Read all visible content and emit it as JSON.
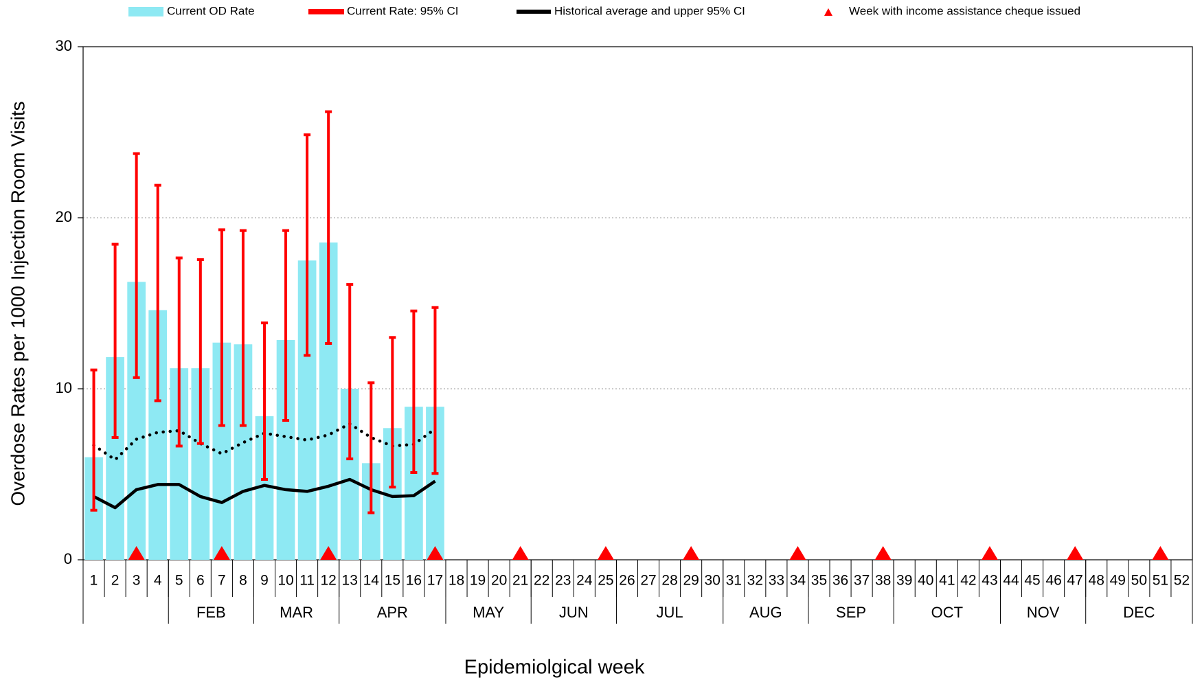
{
  "chart_data": {
    "type": "bar",
    "xlabel": "Epidemiolgical week",
    "ylabel": "Overdose Rates per 1000 Injection Room Visits",
    "categories": [
      "1",
      "2",
      "3",
      "4",
      "5",
      "6",
      "7",
      "8",
      "9",
      "10",
      "11",
      "12",
      "13",
      "14",
      "15",
      "16",
      "17",
      "18",
      "19",
      "20",
      "21",
      "22",
      "23",
      "24",
      "25",
      "26",
      "27",
      "28",
      "29",
      "30",
      "31",
      "32",
      "33",
      "34",
      "35",
      "36",
      "37",
      "38",
      "39",
      "40",
      "41",
      "42",
      "43",
      "44",
      "45",
      "46",
      "47",
      "48",
      "49",
      "50",
      "51",
      "52"
    ],
    "month_groups": [
      {
        "label": null,
        "start": 1,
        "end": 4
      },
      {
        "label": "FEB",
        "start": 5,
        "end": 8
      },
      {
        "label": "MAR",
        "start": 9,
        "end": 12
      },
      {
        "label": "APR",
        "start": 13,
        "end": 17
      },
      {
        "label": "MAY",
        "start": 18,
        "end": 21
      },
      {
        "label": "JUN",
        "start": 22,
        "end": 25
      },
      {
        "label": "JUL",
        "start": 26,
        "end": 30
      },
      {
        "label": "AUG",
        "start": 31,
        "end": 34
      },
      {
        "label": "SEP",
        "start": 35,
        "end": 38
      },
      {
        "label": "OCT",
        "start": 39,
        "end": 43
      },
      {
        "label": "NOV",
        "start": 44,
        "end": 47
      },
      {
        "label": "DEC",
        "start": 48,
        "end": 52
      }
    ],
    "ylim": [
      0,
      30
    ],
    "yticks": [
      0,
      10,
      20,
      30
    ],
    "grid": true,
    "bars": {
      "name": "Current OD Rate",
      "color": "#8ee9f3",
      "values": [
        6.0,
        11.85,
        16.25,
        14.6,
        11.2,
        11.2,
        12.7,
        12.6,
        8.4,
        12.85,
        17.5,
        18.55,
        10.0,
        5.65,
        7.7,
        8.95,
        8.95,
        null,
        null,
        null,
        null,
        null,
        null,
        null,
        null,
        null,
        null,
        null,
        null,
        null,
        null,
        null,
        null,
        null,
        null,
        null,
        null,
        null,
        null,
        null,
        null,
        null,
        null,
        null,
        null,
        null,
        null,
        null,
        null,
        null,
        null,
        null
      ]
    },
    "ci": {
      "name": "Current Rate: 95% CI",
      "color": "#ff0000",
      "upper": [
        11.1,
        18.45,
        23.75,
        21.9,
        17.65,
        17.55,
        19.3,
        19.25,
        13.85,
        19.25,
        24.85,
        26.2,
        16.1,
        10.35,
        13.0,
        14.55,
        14.75,
        null,
        null,
        null,
        null,
        null,
        null,
        null,
        null,
        null,
        null,
        null,
        null,
        null,
        null,
        null,
        null,
        null,
        null,
        null,
        null,
        null,
        null,
        null,
        null,
        null,
        null,
        null,
        null,
        null,
        null,
        null,
        null,
        null,
        null,
        null
      ],
      "lower": [
        2.9,
        7.15,
        10.65,
        9.3,
        6.65,
        6.8,
        7.85,
        7.85,
        4.7,
        8.15,
        11.95,
        12.65,
        5.9,
        2.75,
        4.25,
        5.1,
        5.05,
        null,
        null,
        null,
        null,
        null,
        null,
        null,
        null,
        null,
        null,
        null,
        null,
        null,
        null,
        null,
        null,
        null,
        null,
        null,
        null,
        null,
        null,
        null,
        null,
        null,
        null,
        null,
        null,
        null,
        null,
        null,
        null,
        null,
        null,
        null
      ]
    },
    "historical": {
      "name": "Historical average and upper 95% CI",
      "color": "#000000",
      "values": [
        3.7,
        3.05,
        4.1,
        4.4,
        4.4,
        3.7,
        3.35,
        4.0,
        4.35,
        4.1,
        4.0,
        4.3,
        4.7,
        4.1,
        3.7,
        3.75,
        4.6,
        null,
        null,
        null,
        null,
        null,
        null,
        null,
        null,
        null,
        null,
        null,
        null,
        null,
        null,
        null,
        null,
        null,
        null,
        null,
        null,
        null,
        null,
        null,
        null,
        null,
        null,
        null,
        null,
        null,
        null,
        null,
        null,
        null,
        null,
        null
      ],
      "upper": [
        6.7,
        5.85,
        7.05,
        7.45,
        7.55,
        6.8,
        6.2,
        6.85,
        7.4,
        7.2,
        7.0,
        7.3,
        7.95,
        7.15,
        6.65,
        6.75,
        7.65,
        null,
        null,
        null,
        null,
        null,
        null,
        null,
        null,
        null,
        null,
        null,
        null,
        null,
        null,
        null,
        null,
        null,
        null,
        null,
        null,
        null,
        null,
        null,
        null,
        null,
        null,
        null,
        null,
        null,
        null,
        null,
        null,
        null,
        null,
        null
      ]
    },
    "cheques": {
      "name": "Week with income assistance cheque issued",
      "color": "#ff0000",
      "values": [
        null,
        null,
        0,
        null,
        null,
        null,
        0,
        null,
        null,
        null,
        null,
        0,
        null,
        null,
        null,
        null,
        0,
        null,
        null,
        null,
        0,
        null,
        null,
        null,
        0,
        null,
        null,
        null,
        0,
        null,
        null,
        null,
        null,
        0,
        null,
        null,
        null,
        0,
        null,
        null,
        null,
        null,
        0,
        null,
        null,
        null,
        0,
        null,
        null,
        null,
        0,
        null
      ]
    }
  }
}
